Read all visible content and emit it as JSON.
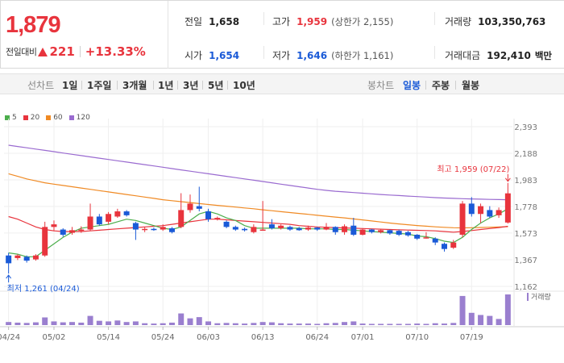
{
  "summary": {
    "price": "1,879",
    "change_label": "전일대비",
    "change_value": "221",
    "change_percent": "+13.33%",
    "prev_close": {
      "label": "전일",
      "value": "1,658"
    },
    "open": {
      "label": "시가",
      "value": "1,654"
    },
    "high": {
      "label": "고가",
      "value": "1,959",
      "sub": "(상한가 2,155)"
    },
    "low": {
      "label": "저가",
      "value": "1,646",
      "sub": "(하한가 1,161)"
    },
    "volume": {
      "label": "거래량",
      "value": "103,350,763"
    },
    "turnover": {
      "label": "거래대금",
      "value": "192,410",
      "unit": "백만"
    }
  },
  "tabs": {
    "line_chart_label": "선차트",
    "line_periods": [
      "1일",
      "1주일",
      "3개월",
      "1년",
      "3년",
      "5년",
      "10년"
    ],
    "candle_chart_label": "봉차트",
    "candle_periods": [
      "일봉",
      "주봉",
      "월봉"
    ],
    "active_candle_period": "일봉"
  },
  "colors": {
    "up": "#e8343d",
    "down": "#1a5ad7",
    "ma5": "#4cae4c",
    "ma20": "#e8343d",
    "ma60": "#f08a24",
    "ma120": "#9a6bd0",
    "volume": "#9a7fcf"
  },
  "chart_data": {
    "type": "candlestick",
    "legend": [
      {
        "name": "5",
        "color": "#4cae4c"
      },
      {
        "name": "20",
        "color": "#e8343d"
      },
      {
        "name": "60",
        "color": "#f08a24"
      },
      {
        "name": "120",
        "color": "#9a6bd0"
      }
    ],
    "y_ticks": [
      "2,393",
      "2,188",
      "1,983",
      "1,778",
      "1,573",
      "1,367",
      "1,162"
    ],
    "y_tick_values": [
      2393,
      2188,
      1983,
      1778,
      1573,
      1367,
      1162
    ],
    "ylim": [
      1162,
      2393
    ],
    "x_ticks": [
      {
        "label": "04/24",
        "index": 0
      },
      {
        "label": "05/02",
        "index": 5
      },
      {
        "label": "05/14",
        "index": 11
      },
      {
        "label": "05/24",
        "index": 17
      },
      {
        "label": "06/03",
        "index": 22
      },
      {
        "label": "06/13",
        "index": 28
      },
      {
        "label": "06/24",
        "index": 34
      },
      {
        "label": "07/01",
        "index": 39
      },
      {
        "label": "07/10",
        "index": 45
      },
      {
        "label": "07/19",
        "index": 51
      }
    ],
    "volume_label": "거래량",
    "high_annotation": "최고 1,959 (07/22)",
    "low_annotation": "최저 1,261 (04/24)",
    "candles": [
      {
        "o": 1400,
        "c": 1340,
        "h": 1420,
        "l": 1261,
        "v": 0.1
      },
      {
        "o": 1380,
        "c": 1400,
        "h": 1410,
        "l": 1365,
        "v": 0.08
      },
      {
        "o": 1390,
        "c": 1360,
        "h": 1400,
        "l": 1345,
        "v": 0.07
      },
      {
        "o": 1370,
        "c": 1400,
        "h": 1410,
        "l": 1360,
        "v": 0.09
      },
      {
        "o": 1400,
        "c": 1620,
        "h": 1660,
        "l": 1390,
        "v": 0.25
      },
      {
        "o": 1620,
        "c": 1640,
        "h": 1670,
        "l": 1590,
        "v": 0.12
      },
      {
        "o": 1600,
        "c": 1560,
        "h": 1610,
        "l": 1545,
        "v": 0.09
      },
      {
        "o": 1575,
        "c": 1595,
        "h": 1620,
        "l": 1560,
        "v": 0.1
      },
      {
        "o": 1590,
        "c": 1600,
        "h": 1625,
        "l": 1575,
        "v": 0.08
      },
      {
        "o": 1600,
        "c": 1700,
        "h": 1800,
        "l": 1590,
        "v": 0.3
      },
      {
        "o": 1700,
        "c": 1640,
        "h": 1720,
        "l": 1630,
        "v": 0.14
      },
      {
        "o": 1660,
        "c": 1720,
        "h": 1735,
        "l": 1640,
        "v": 0.12
      },
      {
        "o": 1700,
        "c": 1740,
        "h": 1760,
        "l": 1690,
        "v": 0.15
      },
      {
        "o": 1740,
        "c": 1710,
        "h": 1750,
        "l": 1700,
        "v": 0.1
      },
      {
        "o": 1650,
        "c": 1600,
        "h": 1660,
        "l": 1520,
        "v": 0.12
      },
      {
        "o": 1600,
        "c": 1605,
        "h": 1620,
        "l": 1580,
        "v": 0.06
      },
      {
        "o": 1605,
        "c": 1600,
        "h": 1615,
        "l": 1590,
        "v": 0.05
      },
      {
        "o": 1600,
        "c": 1620,
        "h": 1640,
        "l": 1590,
        "v": 0.06
      },
      {
        "o": 1610,
        "c": 1580,
        "h": 1620,
        "l": 1570,
        "v": 0.08
      },
      {
        "o": 1620,
        "c": 1750,
        "h": 1880,
        "l": 1610,
        "v": 0.38
      },
      {
        "o": 1750,
        "c": 1800,
        "h": 1870,
        "l": 1730,
        "v": 0.22
      },
      {
        "o": 1780,
        "c": 1760,
        "h": 1930,
        "l": 1740,
        "v": 0.26
      },
      {
        "o": 1740,
        "c": 1680,
        "h": 1760,
        "l": 1660,
        "v": 0.12
      },
      {
        "o": 1680,
        "c": 1690,
        "h": 1700,
        "l": 1670,
        "v": 0.06
      },
      {
        "o": 1660,
        "c": 1620,
        "h": 1670,
        "l": 1610,
        "v": 0.07
      },
      {
        "o": 1620,
        "c": 1600,
        "h": 1630,
        "l": 1590,
        "v": 0.06
      },
      {
        "o": 1605,
        "c": 1595,
        "h": 1615,
        "l": 1585,
        "v": 0.05
      },
      {
        "o": 1580,
        "c": 1620,
        "h": 1640,
        "l": 1570,
        "v": 0.07
      },
      {
        "o": 1600,
        "c": 1600,
        "h": 1820,
        "l": 1595,
        "v": 0.1
      },
      {
        "o": 1640,
        "c": 1610,
        "h": 1680,
        "l": 1600,
        "v": 0.09
      },
      {
        "o": 1610,
        "c": 1630,
        "h": 1640,
        "l": 1600,
        "v": 0.06
      },
      {
        "o": 1620,
        "c": 1600,
        "h": 1630,
        "l": 1590,
        "v": 0.05
      },
      {
        "o": 1610,
        "c": 1595,
        "h": 1620,
        "l": 1590,
        "v": 0.05
      },
      {
        "o": 1600,
        "c": 1615,
        "h": 1630,
        "l": 1590,
        "v": 0.05
      },
      {
        "o": 1615,
        "c": 1600,
        "h": 1620,
        "l": 1590,
        "v": 0.04
      },
      {
        "o": 1600,
        "c": 1620,
        "h": 1650,
        "l": 1595,
        "v": 0.06
      },
      {
        "o": 1620,
        "c": 1580,
        "h": 1625,
        "l": 1560,
        "v": 0.07
      },
      {
        "o": 1580,
        "c": 1625,
        "h": 1640,
        "l": 1560,
        "v": 0.1
      },
      {
        "o": 1630,
        "c": 1560,
        "h": 1690,
        "l": 1550,
        "v": 0.12
      },
      {
        "o": 1560,
        "c": 1600,
        "h": 1610,
        "l": 1555,
        "v": 0.05
      },
      {
        "o": 1600,
        "c": 1580,
        "h": 1605,
        "l": 1570,
        "v": 0.04
      },
      {
        "o": 1580,
        "c": 1595,
        "h": 1600,
        "l": 1570,
        "v": 0.04
      },
      {
        "o": 1595,
        "c": 1570,
        "h": 1600,
        "l": 1560,
        "v": 0.04
      },
      {
        "o": 1590,
        "c": 1560,
        "h": 1600,
        "l": 1550,
        "v": 0.04
      },
      {
        "o": 1580,
        "c": 1555,
        "h": 1590,
        "l": 1545,
        "v": 0.04
      },
      {
        "o": 1560,
        "c": 1530,
        "h": 1565,
        "l": 1520,
        "v": 0.05
      },
      {
        "o": 1540,
        "c": 1540,
        "h": 1580,
        "l": 1530,
        "v": 0.04
      },
      {
        "o": 1530,
        "c": 1500,
        "h": 1540,
        "l": 1480,
        "v": 0.06
      },
      {
        "o": 1490,
        "c": 1450,
        "h": 1500,
        "l": 1430,
        "v": 0.05
      },
      {
        "o": 1460,
        "c": 1500,
        "h": 1520,
        "l": 1450,
        "v": 0.07
      },
      {
        "o": 1560,
        "c": 1800,
        "h": 1820,
        "l": 1540,
        "v": 0.95
      },
      {
        "o": 1800,
        "c": 1720,
        "h": 1850,
        "l": 1700,
        "v": 0.4
      },
      {
        "o": 1720,
        "c": 1780,
        "h": 1800,
        "l": 1650,
        "v": 0.33
      },
      {
        "o": 1750,
        "c": 1700,
        "h": 1780,
        "l": 1690,
        "v": 0.3
      },
      {
        "o": 1710,
        "c": 1750,
        "h": 1770,
        "l": 1690,
        "v": 0.2
      },
      {
        "o": 1654,
        "c": 1879,
        "h": 1959,
        "l": 1646,
        "v": 1.0
      }
    ],
    "ma5": [
      1420,
      1410,
      1390,
      1390,
      1440,
      1490,
      1540,
      1580,
      1610,
      1620,
      1630,
      1640,
      1660,
      1680,
      1670,
      1650,
      1630,
      1610,
      1600,
      1620,
      1670,
      1720,
      1740,
      1720,
      1690,
      1670,
      1630,
      1610,
      1610,
      1610,
      1610,
      1610,
      1610,
      1605,
      1605,
      1605,
      1600,
      1600,
      1595,
      1590,
      1585,
      1580,
      1575,
      1570,
      1565,
      1550,
      1545,
      1530,
      1510,
      1500,
      1540,
      1600,
      1650,
      1690,
      1720,
      1760
    ],
    "ma20": [
      1700,
      1680,
      1650,
      1620,
      1600,
      1590,
      1585,
      1585,
      1585,
      1590,
      1595,
      1600,
      1605,
      1610,
      1615,
      1620,
      1625,
      1630,
      1640,
      1650,
      1660,
      1670,
      1680,
      1680,
      1675,
      1670,
      1665,
      1660,
      1655,
      1650,
      1645,
      1640,
      1630,
      1625,
      1620,
      1618,
      1615,
      1612,
      1610,
      1608,
      1605,
      1603,
      1600,
      1598,
      1596,
      1594,
      1592,
      1590,
      1585,
      1580,
      1585,
      1592,
      1600,
      1608,
      1615,
      1625
    ],
    "ma60": [
      2030,
      2010,
      1990,
      1975,
      1960,
      1950,
      1940,
      1930,
      1920,
      1910,
      1900,
      1890,
      1880,
      1870,
      1860,
      1850,
      1840,
      1830,
      1822,
      1815,
      1808,
      1800,
      1793,
      1786,
      1780,
      1773,
      1766,
      1760,
      1752,
      1745,
      1738,
      1731,
      1724,
      1717,
      1710,
      1703,
      1696,
      1690,
      1682,
      1674,
      1666,
      1658,
      1650,
      1643,
      1637,
      1631,
      1626,
      1621,
      1617,
      1614,
      1613,
      1614,
      1616,
      1618,
      1620,
      1622
    ],
    "ma120": [
      2250,
      2240,
      2230,
      2220,
      2210,
      2200,
      2190,
      2180,
      2170,
      2160,
      2150,
      2140,
      2130,
      2120,
      2110,
      2100,
      2090,
      2080,
      2070,
      2060,
      2050,
      2040,
      2030,
      2020,
      2010,
      2000,
      1990,
      1980,
      1970,
      1960,
      1950,
      1940,
      1930,
      1920,
      1910,
      1902,
      1895,
      1890,
      1885,
      1880,
      1875,
      1870,
      1866,
      1862,
      1858,
      1854,
      1850,
      1846,
      1843,
      1840,
      1838,
      1836,
      1834,
      1832,
      1831,
      1830
    ]
  }
}
